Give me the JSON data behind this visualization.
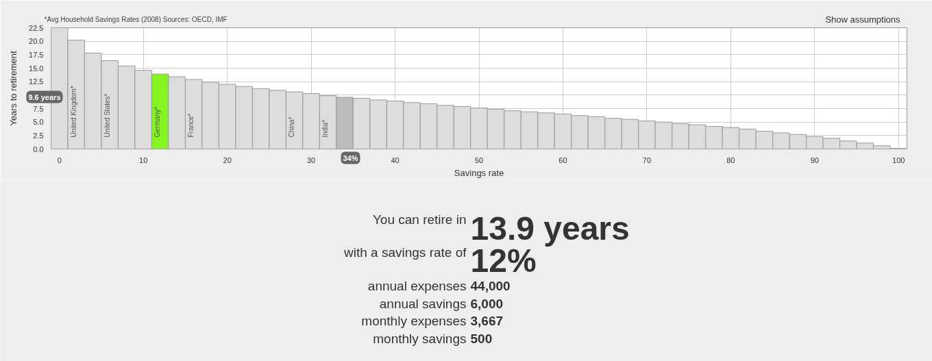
{
  "chart_data": [
    {
      "type": "bar",
      "x": [
        0,
        2,
        4,
        6,
        8,
        10,
        12,
        14,
        16,
        18,
        20,
        22,
        24,
        26,
        28,
        30,
        32,
        34,
        36,
        38,
        40,
        42,
        44,
        46,
        48,
        50,
        52,
        54,
        56,
        58,
        60,
        62,
        64,
        66,
        68,
        70,
        72,
        74,
        76,
        78,
        80,
        82,
        84,
        86,
        88,
        90,
        92,
        94,
        96,
        98,
        100
      ],
      "values": [
        22.5,
        20.2,
        17.8,
        16.4,
        15.4,
        14.6,
        13.9,
        13.4,
        12.9,
        12.4,
        12.0,
        11.6,
        11.2,
        10.9,
        10.6,
        10.3,
        9.9,
        9.6,
        9.4,
        9.1,
        8.9,
        8.6,
        8.4,
        8.1,
        7.9,
        7.6,
        7.4,
        7.1,
        6.9,
        6.7,
        6.5,
        6.2,
        6.0,
        5.7,
        5.5,
        5.2,
        5.0,
        4.7,
        4.5,
        4.2,
        4.0,
        3.7,
        3.3,
        3.0,
        2.7,
        2.3,
        2.0,
        1.5,
        1.1,
        0.6,
        0.1
      ],
      "value_labels": [
        null,
        "United Kingdom*",
        null,
        "United States*",
        null,
        null,
        "Germany*",
        null,
        "France*",
        null,
        null,
        null,
        null,
        null,
        "China*",
        null,
        "India*",
        null,
        null,
        null,
        null,
        null,
        null,
        null,
        null,
        null,
        null,
        null,
        null,
        null,
        null,
        null,
        null,
        null,
        null,
        null,
        null,
        null,
        null,
        null,
        null,
        null,
        null,
        null,
        null,
        null,
        null,
        null,
        null,
        null,
        null
      ],
      "colors": [
        "#dddddd",
        "#dddddd",
        "#dddddd",
        "#dddddd",
        "#dddddd",
        "#dddddd",
        "#84f520",
        "#dddddd",
        "#dddddd",
        "#dddddd",
        "#dddddd",
        "#dddddd",
        "#dddddd",
        "#dddddd",
        "#dddddd",
        "#dddddd",
        "#dddddd",
        "#bbbbbb",
        "#dddddd",
        "#dddddd",
        "#dddddd",
        "#dddddd",
        "#dddddd",
        "#dddddd",
        "#dddddd",
        "#dddddd",
        "#dddddd",
        "#dddddd",
        "#dddddd",
        "#dddddd",
        "#dddddd",
        "#dddddd",
        "#dddddd",
        "#dddddd",
        "#dddddd",
        "#dddddd",
        "#dddddd",
        "#dddddd",
        "#dddddd",
        "#dddddd",
        "#dddddd",
        "#dddddd",
        "#dddddd",
        "#dddddd",
        "#dddddd",
        "#dddddd",
        "#dddddd",
        "#dddddd",
        "#dddddd",
        "#dddddd",
        "#dddddd"
      ],
      "xlim": [
        -1,
        101
      ],
      "ylim": [
        0,
        22.5
      ],
      "xticks": [
        0,
        10,
        20,
        30,
        40,
        50,
        60,
        70,
        80,
        90,
        100
      ],
      "yticks": [
        {
          "value": 0,
          "label": "0.0"
        },
        2.5,
        {
          "value": 5,
          "label": "5.0"
        },
        7.5,
        {
          "value": 10,
          "label": null
        },
        12.5,
        {
          "value": 15,
          "label": "15.0"
        },
        17.5,
        {
          "value": 20,
          "label": "20.0"
        },
        22.5
      ],
      "grid": true,
      "xlabel": "Savings rate",
      "ylabel": "Years to retirement",
      "annotations": [
        "*Avg Household Savings Rates (2008) Sources: OECD, IMF",
        "Show assumptions",
        "9.6 years",
        "34%"
      ]
    },
    {
      "type": "other",
      "annotations": [
        "You can retire in",
        "13.9 years",
        "with a savings rate of",
        "12%",
        "annual expenses",
        "44,000",
        "annual savings",
        "6,000",
        "monthly expenses",
        "3,667",
        "monthly savings",
        "500"
      ]
    }
  ]
}
